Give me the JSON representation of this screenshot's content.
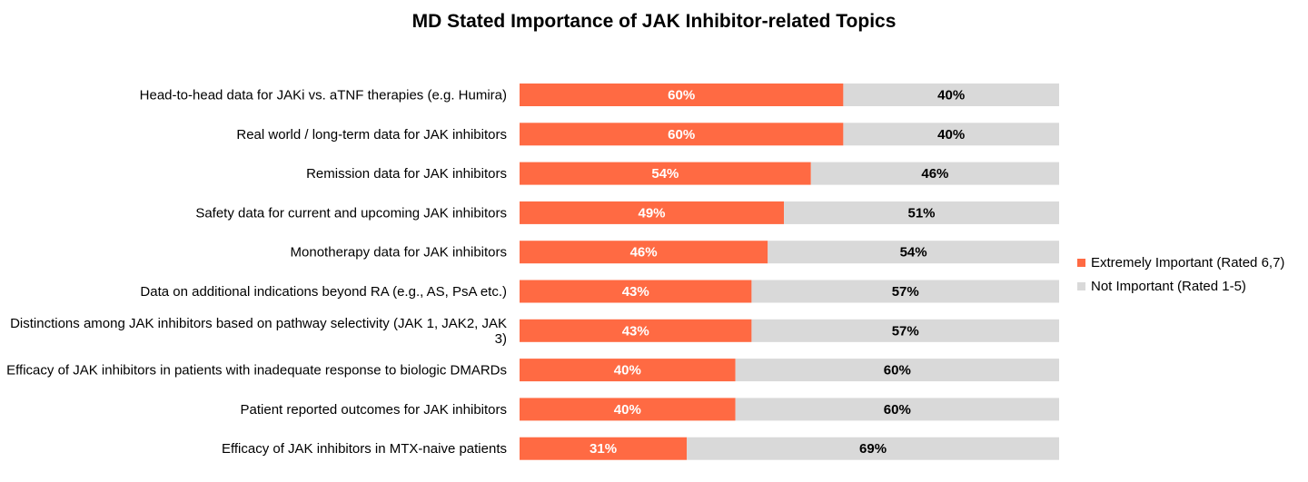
{
  "chart_data": {
    "type": "bar",
    "orientation": "horizontal",
    "stacked": true,
    "title": "MD Stated Importance of JAK Inhibitor-related Topics",
    "categories": [
      "Head-to-head data for JAKi vs. aTNF therapies (e.g. Humira)",
      "Real world / long-term data for JAK inhibitors",
      "Remission data for JAK inhibitors",
      "Safety data for current and upcoming JAK inhibitors",
      "Monotherapy data for JAK inhibitors",
      "Data on additional indications beyond RA (e.g., AS, PsA etc.)",
      "Distinctions among JAK inhibitors based on pathway selectivity (JAK 1, JAK2, JAK 3)",
      "Efficacy of JAK inhibitors in patients with inadequate response to biologic DMARDs",
      "Patient reported outcomes for JAK inhibitors",
      "Efficacy of JAK inhibitors in MTX-naive patients"
    ],
    "series": [
      {
        "name": "Extremely Important (Rated 6,7)",
        "color": "#FF6A43",
        "label_color": "#FFFFFF",
        "values": [
          60,
          60,
          54,
          49,
          46,
          43,
          43,
          40,
          40,
          31
        ]
      },
      {
        "name": "Not Important (Rated 1-5)",
        "color": "#D9D9D9",
        "label_color": "#000000",
        "values": [
          40,
          40,
          46,
          51,
          54,
          57,
          57,
          60,
          60,
          69
        ]
      }
    ],
    "value_suffix": "%",
    "xlim": [
      0,
      100
    ],
    "grid": false,
    "legend_position": "right"
  }
}
